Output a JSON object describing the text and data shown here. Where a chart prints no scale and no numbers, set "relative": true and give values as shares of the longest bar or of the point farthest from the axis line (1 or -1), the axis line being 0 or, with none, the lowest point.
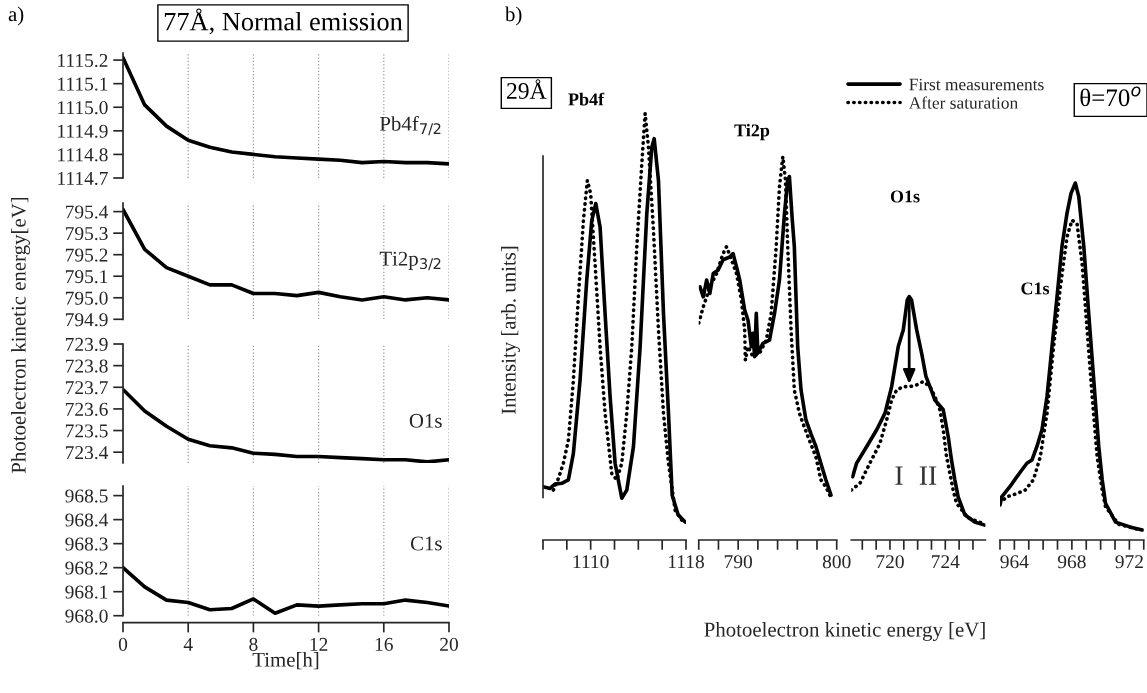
{
  "chart_data": [
    {
      "type": "line",
      "x": [
        0,
        1.33,
        2.67,
        4,
        5.33,
        6.67,
        8,
        9.33,
        10.67,
        12,
        13.33,
        14.67,
        16,
        17.33,
        18.67,
        20
      ],
      "series": [
        {
          "name": "Pb4f$_{7/2}$",
          "color": "#000000",
          "values": [
            1115.21,
            1115.01,
            1114.92,
            1114.86,
            1114.83,
            1114.81,
            1114.8,
            1114.79,
            1114.785,
            1114.78,
            1114.775,
            1114.765,
            1114.77,
            1114.765,
            1114.765,
            1114.76
          ]
        }
      ],
      "xlim": [
        0,
        20
      ],
      "xticks": [
        0,
        4,
        8,
        12,
        16,
        20
      ],
      "ylim": [
        1114.7,
        1115.23
      ],
      "yticks": [
        1114.7,
        1114.8,
        1114.9,
        {
          "value": 1115.0,
          "label": "1115.0"
        },
        1115.1,
        1115.2
      ],
      "grid": "x",
      "tick_labels": "y",
      "line_style": "solid",
      "annotations": [
        "a)",
        "77Å, Normal emission"
      ]
    },
    {
      "type": "line",
      "x": [
        0,
        1.33,
        2.67,
        4,
        5.33,
        6.67,
        8,
        9.33,
        10.67,
        12,
        13.33,
        14.67,
        16,
        17.33,
        18.67,
        20
      ],
      "series": [
        {
          "name": "Ti2p$_{3/2}$",
          "color": "#000000",
          "values": [
            795.41,
            795.225,
            795.14,
            795.1,
            795.06,
            795.06,
            795.02,
            795.02,
            795.01,
            795.025,
            795.005,
            794.99,
            795.005,
            794.99,
            795.0,
            794.99
          ]
        }
      ],
      "xlim": [
        0,
        20
      ],
      "xticks": [
        0,
        4,
        8,
        12,
        16,
        20
      ],
      "ylim": [
        794.9,
        795.44
      ],
      "yticks": [
        794.9,
        {
          "value": 795.0,
          "label": "795.0"
        },
        795.1,
        795.2,
        795.3,
        795.4
      ],
      "grid": "x",
      "tick_labels": "y",
      "line_style": "solid",
      "ylabel": "Photoelectron kinetic energy[eV]"
    },
    {
      "type": "line",
      "x": [
        0,
        1.33,
        2.67,
        4,
        5.33,
        6.67,
        8,
        9.33,
        10.67,
        12,
        13.33,
        14.67,
        16,
        17.33,
        18.67,
        20
      ],
      "series": [
        {
          "name": "O1s",
          "color": "#000000",
          "values": [
            723.69,
            723.59,
            723.52,
            723.46,
            723.43,
            723.42,
            723.395,
            723.39,
            723.38,
            723.38,
            723.375,
            723.37,
            723.365,
            723.365,
            723.355,
            723.365
          ]
        }
      ],
      "xlim": [
        0,
        20
      ],
      "xticks": [
        0,
        4,
        8,
        12,
        16,
        20
      ],
      "ylim": [
        723.35,
        723.9
      ],
      "yticks": [
        723.4,
        723.5,
        723.6,
        723.7,
        723.8,
        723.9
      ],
      "grid": "x",
      "tick_labels": "y",
      "line_style": "solid"
    },
    {
      "type": "line",
      "x": [
        0,
        1.33,
        2.67,
        4,
        5.33,
        6.67,
        8,
        9.33,
        10.67,
        12,
        13.33,
        14.67,
        16,
        17.33,
        18.67,
        20
      ],
      "series": [
        {
          "name": "C1s",
          "color": "#000000",
          "values": [
            968.2,
            968.12,
            968.065,
            968.055,
            968.025,
            968.03,
            968.07,
            968.01,
            968.045,
            968.04,
            968.045,
            968.05,
            968.05,
            968.065,
            968.055,
            968.04
          ]
        }
      ],
      "xlim": [
        0,
        20
      ],
      "xticks": [
        0,
        4,
        8,
        12,
        16,
        20
      ],
      "ylim": [
        968.0,
        968.54
      ],
      "yticks": [
        {
          "value": 968.0,
          "label": "968.0"
        },
        968.1,
        968.2,
        968.3,
        968.4,
        968.5
      ],
      "grid": "x",
      "line_style": "solid",
      "xlabel": "Time[h]"
    },
    {
      "type": "line",
      "relative": true,
      "tick_labels": "x",
      "xlim": [
        1106,
        1118
      ],
      "xticks": [
        {
          "value": 1106,
          "label": null
        },
        {
          "value": 1108,
          "label": null
        },
        1110,
        {
          "value": 1112,
          "label": null
        },
        {
          "value": 1114,
          "label": null
        },
        {
          "value": 1116,
          "label": null
        },
        1118
      ],
      "series": [
        {
          "color": "#000000",
          "line_style": "solid",
          "x": [
            1106.0,
            1106.59,
            1107.0,
            1107.57,
            1108.13,
            1108.55,
            1109.11,
            1109.67,
            1110.09,
            1110.43,
            1110.79,
            1111.21,
            1111.63,
            1112.05,
            1112.61,
            1113.03,
            1113.59,
            1114.15,
            1114.71,
            1115.13,
            1115.33,
            1115.69,
            1116.11,
            1116.53,
            1116.84,
            1117.34,
            1117.93
          ],
          "values": [
            0.125,
            0.121,
            0.131,
            0.133,
            0.141,
            0.203,
            0.375,
            0.609,
            0.749,
            0.789,
            0.734,
            0.531,
            0.336,
            0.18,
            0.098,
            0.117,
            0.219,
            0.453,
            0.765,
            0.921,
            0.941,
            0.843,
            0.531,
            0.297,
            0.105,
            0.059,
            0.042
          ]
        },
        {
          "color": "#000000",
          "line_style": "dotted",
          "x": [
            1106.87,
            1107.29,
            1107.71,
            1108.13,
            1108.55,
            1108.97,
            1109.39,
            1109.72,
            1110.0,
            1110.37,
            1110.79,
            1111.21,
            1111.77,
            1112.19,
            1112.61,
            1113.03,
            1113.45,
            1113.87,
            1114.29,
            1114.57,
            1114.85,
            1115.27,
            1115.69,
            1116.11,
            1116.53,
            1117.09,
            1117.76
          ],
          "values": [
            0.117,
            0.144,
            0.18,
            0.234,
            0.375,
            0.57,
            0.749,
            0.843,
            0.812,
            0.648,
            0.453,
            0.297,
            0.156,
            0.141,
            0.18,
            0.297,
            0.453,
            0.687,
            0.882,
            1.0,
            0.921,
            0.726,
            0.492,
            0.297,
            0.18,
            0.07,
            0.042
          ]
        }
      ],
      "ylabel": "Intensity [arb. units]",
      "xlabel": "Photoelectron kinetic energy [eV]",
      "annotations": [
        "b)",
        "29Å",
        "Pb4f"
      ]
    },
    {
      "type": "line",
      "relative": true,
      "tick_labels": "x",
      "xlim": [
        786,
        800
      ],
      "xticks": [
        {
          "value": 786,
          "label": null
        },
        {
          "value": 788,
          "label": null
        },
        790,
        {
          "value": 792,
          "label": null
        },
        {
          "value": 794,
          "label": null
        },
        {
          "value": 796,
          "label": null
        },
        {
          "value": 798,
          "label": null
        },
        800
      ],
      "series": [
        {
          "color": "#000000",
          "line_style": "solid",
          "x": [
            786.13,
            786.46,
            786.8,
            787.13,
            787.47,
            787.97,
            788.47,
            789.15,
            789.48,
            789.83,
            790.16,
            790.66,
            791.0,
            791.34,
            791.5,
            791.67,
            791.84,
            792.0,
            792.51,
            793.18,
            793.69,
            794.19,
            794.7,
            795.03,
            795.2,
            795.47,
            795.7,
            796.04,
            796.38,
            796.88,
            797.39,
            797.89,
            798.39,
            798.9,
            799.42
          ],
          "values": [
            0.66,
            0.634,
            0.678,
            0.643,
            0.695,
            0.704,
            0.731,
            0.738,
            0.747,
            0.713,
            0.678,
            0.6,
            0.573,
            0.504,
            0.539,
            0.478,
            0.591,
            0.487,
            0.513,
            0.521,
            0.591,
            0.678,
            0.852,
            0.939,
            0.948,
            0.843,
            0.765,
            0.504,
            0.391,
            0.313,
            0.277,
            0.244,
            0.2,
            0.157,
            0.117
          ]
        },
        {
          "color": "#000000",
          "line_style": "dotted",
          "x": [
            786.0,
            786.46,
            787.13,
            787.81,
            788.47,
            788.82,
            789.32,
            789.83,
            790.33,
            790.66,
            790.73,
            791.0,
            791.5,
            792.17,
            792.85,
            793.35,
            793.86,
            794.19,
            794.53,
            794.8,
            795.03,
            795.37,
            795.7,
            796.21,
            796.71,
            797.22,
            797.89,
            798.39,
            798.9,
            799.52
          ],
          "values": [
            0.566,
            0.608,
            0.66,
            0.695,
            0.747,
            0.765,
            0.731,
            0.695,
            0.626,
            0.548,
            0.469,
            0.504,
            0.478,
            0.487,
            0.521,
            0.591,
            0.765,
            0.921,
            1.0,
            0.939,
            0.765,
            0.548,
            0.391,
            0.331,
            0.295,
            0.261,
            0.217,
            0.157,
            0.139,
            0.105
          ]
        }
      ],
      "annotations": [
        "Ti2p"
      ]
    },
    {
      "type": "line",
      "relative": true,
      "tick_labels": "x",
      "xlim": [
        717.2,
        726.9
      ],
      "legend": "top",
      "xticks": [
        {
          "value": 718,
          "label": null
        },
        {
          "value": 719,
          "label": null
        },
        720,
        {
          "value": 721,
          "label": null
        },
        {
          "value": 722,
          "label": null
        },
        {
          "value": 723,
          "label": null
        },
        724,
        {
          "value": 725,
          "label": null
        },
        {
          "value": 726,
          "label": null
        }
      ],
      "series": [
        {
          "name": "First measurements",
          "color": "#000000",
          "line_style": "solid",
          "x": [
            717.3,
            717.59,
            718.32,
            719.04,
            719.64,
            720.12,
            720.6,
            720.96,
            721.25,
            721.39,
            721.56,
            721.93,
            722.29,
            722.6,
            722.89,
            723.25,
            723.85,
            724.21,
            724.45,
            724.69,
            724.93,
            725.41,
            726.13,
            726.85
          ],
          "values": [
            0.26,
            0.316,
            0.384,
            0.453,
            0.521,
            0.63,
            0.795,
            0.863,
            0.986,
            1.0,
            0.986,
            0.863,
            0.767,
            0.672,
            0.63,
            0.575,
            0.535,
            0.425,
            0.328,
            0.247,
            0.177,
            0.104,
            0.074,
            0.061
          ]
        },
        {
          "name": "After saturation",
          "color": "#000000",
          "line_style": "dotted",
          "x": [
            717.2,
            717.83,
            718.55,
            719.27,
            719.76,
            720.12,
            720.48,
            720.96,
            721.44,
            721.93,
            722.4,
            722.89,
            723.25,
            723.61,
            723.85,
            724.09,
            724.33,
            724.57,
            724.81,
            725.64,
            726.85
          ],
          "values": [
            0.205,
            0.233,
            0.316,
            0.396,
            0.493,
            0.575,
            0.616,
            0.63,
            0.63,
            0.637,
            0.651,
            0.63,
            0.589,
            0.535,
            0.453,
            0.342,
            0.274,
            0.205,
            0.151,
            0.091,
            0.065
          ]
        }
      ],
      "annotations": [
        "O1s",
        "I",
        "II"
      ]
    },
    {
      "type": "line",
      "relative": true,
      "tick_labels": "x",
      "xlim": [
        963,
        973
      ],
      "xticks": [
        {
          "value": 963,
          "label": null
        },
        964,
        {
          "value": 965,
          "label": null
        },
        {
          "value": 966,
          "label": null
        },
        {
          "value": 967,
          "label": null
        },
        968,
        {
          "value": 969,
          "label": null
        },
        {
          "value": 970,
          "label": null
        },
        {
          "value": 971,
          "label": null
        },
        972,
        {
          "value": 973,
          "label": null
        }
      ],
      "series": [
        {
          "color": "#000000",
          "line_style": "solid",
          "x": [
            963.0,
            963.12,
            963.7,
            964.17,
            964.52,
            964.87,
            965.22,
            965.57,
            965.92,
            966.27,
            966.62,
            966.97,
            967.31,
            967.66,
            967.94,
            968.24,
            968.48,
            968.83,
            969.17,
            969.52,
            969.87,
            970.11,
            970.34,
            971.04,
            972.09,
            972.9
          ],
          "values": [
            0.098,
            0.121,
            0.15,
            0.177,
            0.196,
            0.215,
            0.224,
            0.262,
            0.309,
            0.402,
            0.542,
            0.682,
            0.822,
            0.915,
            0.971,
            1.0,
            0.962,
            0.822,
            0.635,
            0.449,
            0.262,
            0.169,
            0.103,
            0.05,
            0.036,
            0.028
          ]
        },
        {
          "color": "#000000",
          "line_style": "dotted",
          "x": [
            963.0,
            963.47,
            964.17,
            964.75,
            965.33,
            965.8,
            966.27,
            966.73,
            967.2,
            967.66,
            968.01,
            968.36,
            968.71,
            969.06,
            969.41,
            969.76,
            970.11,
            970.34,
            971.25,
            972.79
          ],
          "values": [
            0.103,
            0.121,
            0.13,
            0.14,
            0.169,
            0.233,
            0.355,
            0.542,
            0.709,
            0.849,
            0.896,
            0.886,
            0.775,
            0.589,
            0.402,
            0.233,
            0.14,
            0.093,
            0.044,
            0.028
          ]
        }
      ],
      "annotations": [
        "C1s",
        "θ=70$^{o}$"
      ]
    }
  ]
}
